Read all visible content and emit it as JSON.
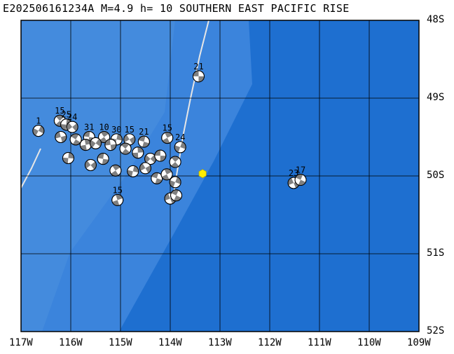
{
  "map": {
    "title": "E202506161234A M=4.9 h= 10 SOUTHERN EAST PACIFIC RISE",
    "lon_range": [
      -117,
      -109
    ],
    "lat_range": [
      -52,
      -48
    ],
    "lat_labels": [
      "48S",
      "49S",
      "50S",
      "51S",
      "52S"
    ],
    "lon_labels": [
      "117W",
      "116W",
      "115W",
      "114W",
      "113W",
      "112W",
      "111W",
      "110W",
      "109W"
    ],
    "colors": {
      "ocean_deep": "#1e6fd0",
      "ridge_shallow": "#3b84dc",
      "ridge_crest": "#5697e0",
      "grid": "#000000",
      "beachball_fill": "#808080",
      "event_marker": "#ffee00"
    },
    "event": {
      "lon": -113.35,
      "lat": -49.97,
      "icon": "yellow-hexagon"
    },
    "mechanisms": [
      {
        "lon": -113.43,
        "lat": -48.72,
        "label": "21"
      },
      {
        "lon": -116.22,
        "lat": -49.29,
        "label": "15"
      },
      {
        "lon": -116.09,
        "lat": -49.34,
        "label": "25"
      },
      {
        "lon": -115.97,
        "lat": -49.37,
        "label": "24"
      },
      {
        "lon": -115.63,
        "lat": -49.5,
        "label": "31"
      },
      {
        "lon": -115.33,
        "lat": -49.5,
        "label": "10"
      },
      {
        "lon": -115.08,
        "lat": -49.53,
        "label": "30"
      },
      {
        "lon": -114.82,
        "lat": -49.53,
        "label": "15"
      },
      {
        "lon": -114.53,
        "lat": -49.56,
        "label": "21"
      },
      {
        "lon": -114.06,
        "lat": -49.51,
        "label": "15"
      },
      {
        "lon": -113.8,
        "lat": -49.63,
        "label": "24"
      },
      {
        "lon": -111.52,
        "lat": -50.09,
        "label": "23"
      },
      {
        "lon": -111.38,
        "lat": -50.05,
        "label": "17"
      },
      {
        "lon": -115.06,
        "lat": -50.31,
        "label": "15"
      },
      {
        "lon": -116.65,
        "lat": -49.42,
        "label": "1"
      },
      {
        "lon": -116.2,
        "lat": -49.5,
        "label": ""
      },
      {
        "lon": -115.9,
        "lat": -49.53,
        "label": ""
      },
      {
        "lon": -115.7,
        "lat": -49.6,
        "label": ""
      },
      {
        "lon": -115.5,
        "lat": -49.58,
        "label": ""
      },
      {
        "lon": -115.2,
        "lat": -49.6,
        "label": ""
      },
      {
        "lon": -114.9,
        "lat": -49.65,
        "label": ""
      },
      {
        "lon": -114.65,
        "lat": -49.7,
        "label": ""
      },
      {
        "lon": -114.4,
        "lat": -49.78,
        "label": ""
      },
      {
        "lon": -114.2,
        "lat": -49.74,
        "label": ""
      },
      {
        "lon": -113.9,
        "lat": -49.82,
        "label": ""
      },
      {
        "lon": -116.05,
        "lat": -49.77,
        "label": ""
      },
      {
        "lon": -115.6,
        "lat": -49.86,
        "label": ""
      },
      {
        "lon": -115.35,
        "lat": -49.78,
        "label": ""
      },
      {
        "lon": -115.1,
        "lat": -49.93,
        "label": ""
      },
      {
        "lon": -114.75,
        "lat": -49.94,
        "label": ""
      },
      {
        "lon": -114.5,
        "lat": -49.9,
        "label": ""
      },
      {
        "lon": -114.27,
        "lat": -50.03,
        "label": ""
      },
      {
        "lon": -114.07,
        "lat": -49.98,
        "label": ""
      },
      {
        "lon": -113.9,
        "lat": -50.08,
        "label": ""
      },
      {
        "lon": -114.0,
        "lat": -50.29,
        "label": ""
      },
      {
        "lon": -113.88,
        "lat": -50.25,
        "label": ""
      }
    ]
  }
}
